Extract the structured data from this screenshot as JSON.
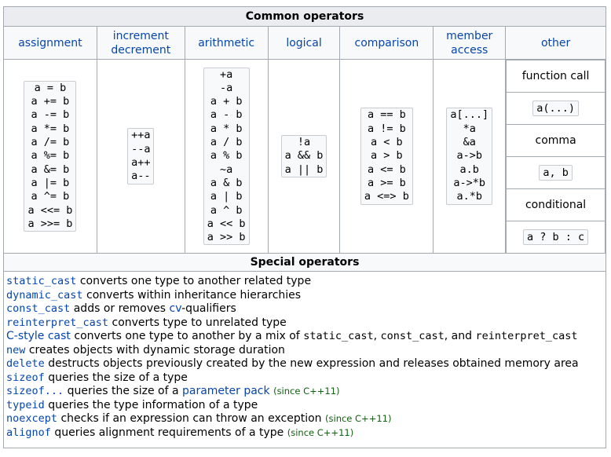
{
  "title": "Common operators",
  "headers": [
    {
      "lines": [
        "assignment"
      ]
    },
    {
      "lines": [
        "increment",
        "decrement"
      ]
    },
    {
      "lines": [
        "arithmetic"
      ]
    },
    {
      "lines": [
        "logical"
      ]
    },
    {
      "lines": [
        "comparison"
      ]
    },
    {
      "lines": [
        "member",
        "access"
      ]
    },
    {
      "lines": [
        "other"
      ]
    }
  ],
  "assignment": [
    "a = b",
    "a += b",
    "a -= b",
    "a *= b",
    "a /= b",
    "a %= b",
    "a &= b",
    "a |= b",
    "a ^= b",
    "a <<= b",
    "a >>= b"
  ],
  "increment": [
    "++a",
    "--a",
    "a++",
    "a--"
  ],
  "arithmetic": [
    "+a",
    "-a",
    "a + b",
    "a - b",
    "a * b",
    "a / b",
    "a % b",
    "~a",
    "a & b",
    "a | b",
    "a ^ b",
    "a << b",
    "a >> b"
  ],
  "logical": [
    "!a",
    "a && b",
    "a || b"
  ],
  "comparison": [
    "a == b",
    "a != b",
    "a < b",
    "a > b",
    "a <= b",
    "a >= b",
    "a <=> b"
  ],
  "member": [
    "a[...]",
    "*a",
    "&a",
    "a->b",
    "a.b",
    "a->*b",
    "a.*b"
  ],
  "other": [
    {
      "kind": "text",
      "value": "function call"
    },
    {
      "kind": "code",
      "value": "a(...)"
    },
    {
      "kind": "text",
      "value": "comma"
    },
    {
      "kind": "code",
      "value": "a, b"
    },
    {
      "kind": "text",
      "value": "conditional"
    },
    {
      "kind": "code",
      "value": "a ? b : c"
    }
  ],
  "special_title": "Special operators",
  "special": [
    {
      "parts": [
        {
          "k": "kw",
          "t": "static_cast"
        },
        {
          "k": "txt",
          "t": " converts one type to another related type"
        }
      ]
    },
    {
      "parts": [
        {
          "k": "kw",
          "t": "dynamic_cast"
        },
        {
          "k": "txt",
          "t": " converts within inheritance hierarchies"
        }
      ]
    },
    {
      "parts": [
        {
          "k": "kw",
          "t": "const_cast"
        },
        {
          "k": "txt",
          "t": " adds or removes "
        },
        {
          "k": "link",
          "t": "cv"
        },
        {
          "k": "txt",
          "t": "-qualifiers"
        }
      ]
    },
    {
      "parts": [
        {
          "k": "kw",
          "t": "reinterpret_cast"
        },
        {
          "k": "txt",
          "t": " converts type to unrelated type"
        }
      ]
    },
    {
      "parts": [
        {
          "k": "link",
          "t": "C-style cast"
        },
        {
          "k": "txt",
          "t": " converts one type to another by a mix of "
        },
        {
          "k": "mono",
          "t": "static_cast"
        },
        {
          "k": "txt",
          "t": ", "
        },
        {
          "k": "mono",
          "t": "const_cast"
        },
        {
          "k": "txt",
          "t": ", and "
        },
        {
          "k": "mono",
          "t": "reinterpret_cast"
        }
      ]
    },
    {
      "parts": [
        {
          "k": "kw",
          "t": "new"
        },
        {
          "k": "txt",
          "t": " creates objects with dynamic storage duration"
        }
      ]
    },
    {
      "parts": [
        {
          "k": "kw",
          "t": "delete"
        },
        {
          "k": "txt",
          "t": " destructs objects previously created by the new expression and releases obtained memory area"
        }
      ]
    },
    {
      "parts": [
        {
          "k": "kw",
          "t": "sizeof"
        },
        {
          "k": "txt",
          "t": " queries the size of a type"
        }
      ]
    },
    {
      "parts": [
        {
          "k": "kw",
          "t": "sizeof..."
        },
        {
          "k": "txt",
          "t": " queries the size of a "
        },
        {
          "k": "link",
          "t": "parameter pack"
        },
        {
          "k": "txt",
          "t": " "
        },
        {
          "k": "since",
          "t": "(since C++11)"
        }
      ]
    },
    {
      "parts": [
        {
          "k": "kw",
          "t": "typeid"
        },
        {
          "k": "txt",
          "t": " queries the type information of a type"
        }
      ]
    },
    {
      "parts": [
        {
          "k": "kw",
          "t": "noexcept"
        },
        {
          "k": "txt",
          "t": " checks if an expression can throw an exception "
        },
        {
          "k": "since",
          "t": "(since C++11)"
        }
      ]
    },
    {
      "parts": [
        {
          "k": "kw",
          "t": "alignof"
        },
        {
          "k": "txt",
          "t": " queries alignment requirements of a type "
        },
        {
          "k": "since",
          "t": "(since C++11)"
        }
      ]
    }
  ]
}
